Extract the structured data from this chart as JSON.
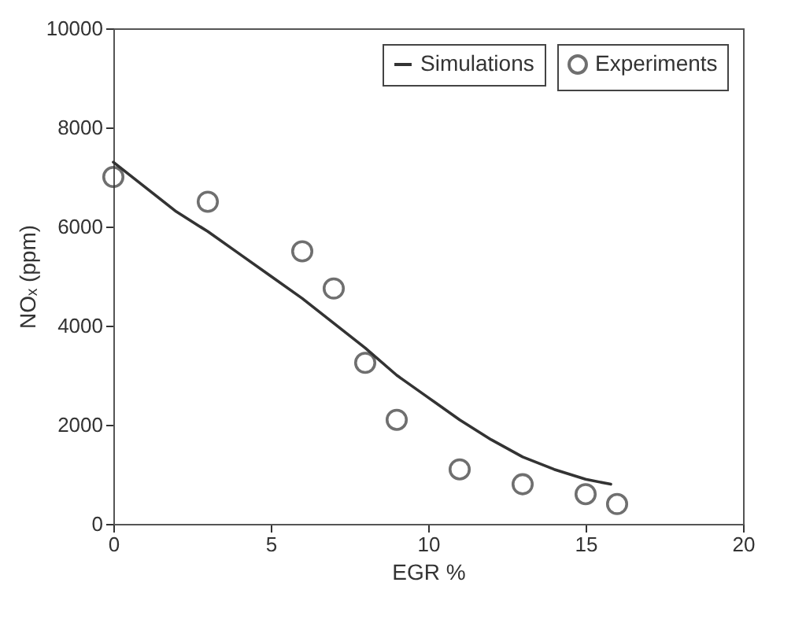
{
  "chart_data": {
    "type": "scatter",
    "xlabel": "EGR %",
    "ylabel": "NOₓ (ppm)",
    "xlim": [
      0,
      20
    ],
    "xticks": [
      0,
      5,
      10,
      15,
      20
    ],
    "ylim": [
      0,
      10000
    ],
    "yticks": [
      0,
      2000,
      4000,
      6000,
      8000,
      10000
    ],
    "grid": false,
    "legend": "top right",
    "series": [
      {
        "name": "Simulations",
        "type": "line",
        "color": "#333333",
        "marker": "none",
        "line_style": "solid",
        "x": [
          0,
          1,
          2,
          3,
          4,
          5,
          6,
          7,
          8,
          9,
          10,
          11,
          12,
          13,
          14,
          15,
          15.8
        ],
        "values": [
          7300,
          6800,
          6300,
          5900,
          5450,
          5000,
          4550,
          4050,
          3550,
          3000,
          2550,
          2100,
          1700,
          1350,
          1100,
          900,
          800
        ]
      },
      {
        "name": "Experiments",
        "color": "#333333",
        "marker": "circle",
        "x": [
          0,
          3,
          6,
          7,
          8,
          9,
          11,
          13,
          15,
          16
        ],
        "values": [
          7000,
          6500,
          5500,
          4750,
          3250,
          2100,
          1100,
          800,
          600,
          400
        ]
      }
    ]
  }
}
